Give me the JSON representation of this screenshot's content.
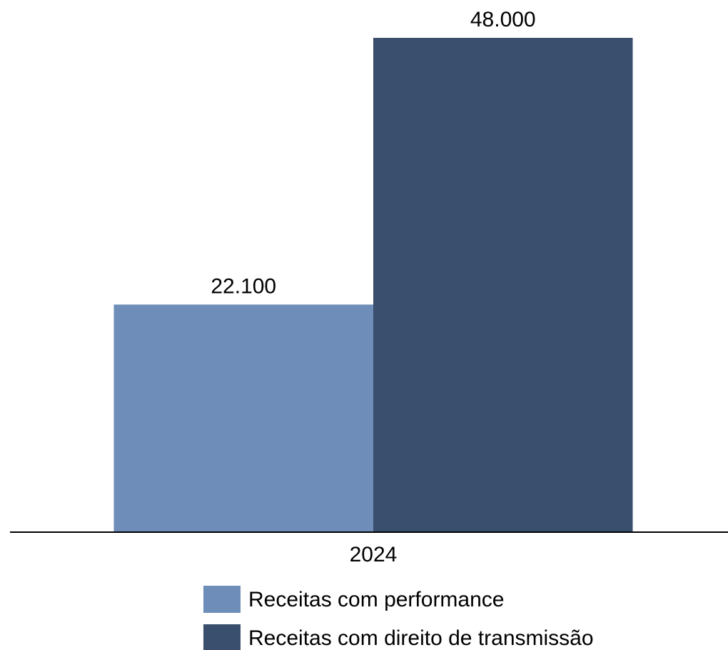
{
  "chart_data": {
    "type": "bar",
    "categories": [
      "2024"
    ],
    "series": [
      {
        "name": "Receitas com performance",
        "color": "#6e8db9",
        "values": [
          22100
        ],
        "value_labels": [
          "22.100"
        ]
      },
      {
        "name": "Receitas com direito de transmissão",
        "color": "#3a4e6d",
        "values": [
          48000
        ],
        "value_labels": [
          "48.000"
        ]
      }
    ]
  }
}
